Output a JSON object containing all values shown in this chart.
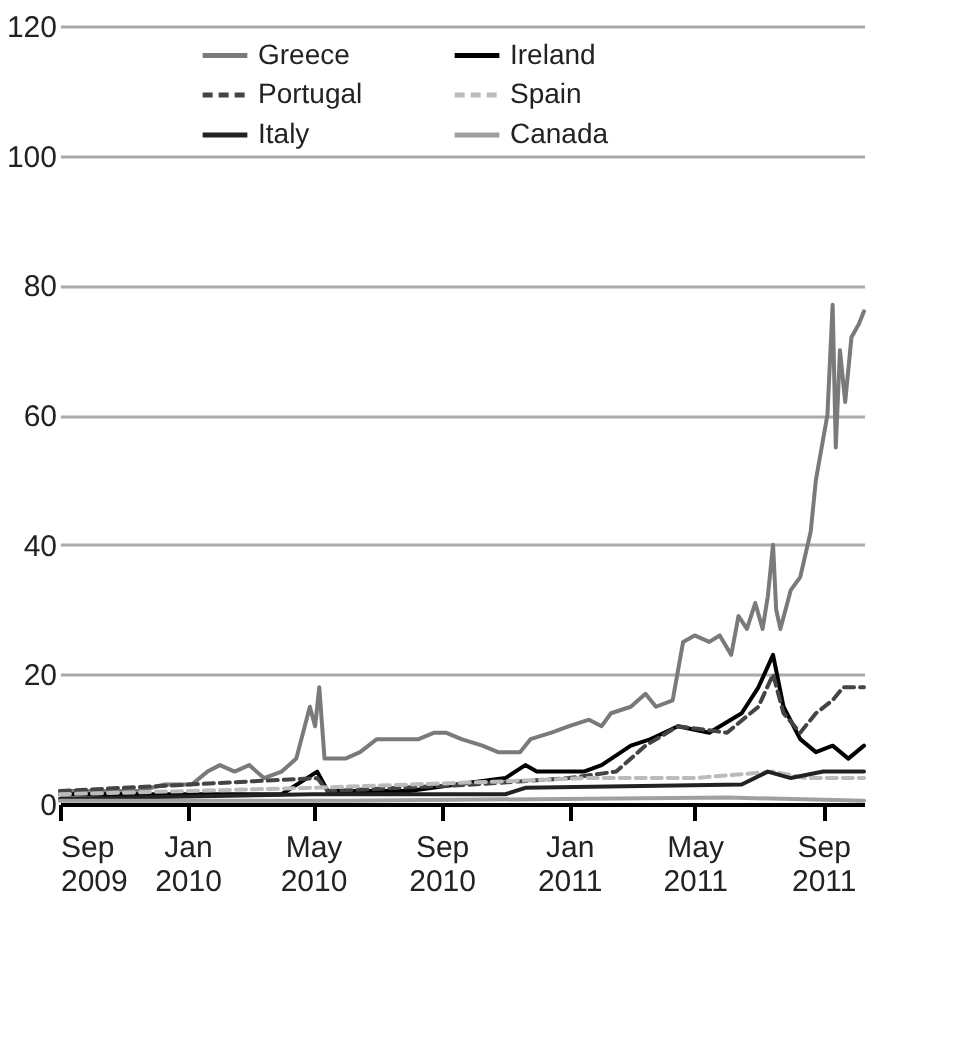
{
  "chart_data": {
    "type": "line",
    "xlim": [
      "2009-09-01",
      "2011-10-10"
    ],
    "xticks": [
      {
        "value": "2009-09-01",
        "label": "Sep\n2009"
      },
      {
        "value": "2010-01-01",
        "label": "Jan\n2010"
      },
      {
        "value": "2010-05-01",
        "label": "May\n2010"
      },
      {
        "value": "2010-09-01",
        "label": "Sep\n2010"
      },
      {
        "value": "2011-01-01",
        "label": "Jan\n2011"
      },
      {
        "value": "2011-05-01",
        "label": "May\n2011"
      },
      {
        "value": "2011-09-01",
        "label": "Sep\n2011"
      }
    ],
    "ylim": [
      0,
      120
    ],
    "yticks": [
      0,
      20,
      40,
      60,
      80,
      100,
      120
    ],
    "grid": "y",
    "legend": "top",
    "series": [
      {
        "name": "Greece",
        "color": "#7a7a7a",
        "line_style": "solid",
        "x": [
          "2009-09-01",
          "2009-11-15",
          "2009-12-10",
          "2010-01-05",
          "2010-01-20",
          "2010-02-01",
          "2010-02-15",
          "2010-03-01",
          "2010-03-15",
          "2010-04-01",
          "2010-04-15",
          "2010-04-28",
          "2010-05-03",
          "2010-05-07",
          "2010-05-12",
          "2010-06-01",
          "2010-06-15",
          "2010-07-01",
          "2010-07-20",
          "2010-08-10",
          "2010-08-25",
          "2010-09-05",
          "2010-09-20",
          "2010-10-10",
          "2010-10-25",
          "2010-11-15",
          "2010-11-25",
          "2010-12-15",
          "2011-01-01",
          "2011-01-20",
          "2011-02-01",
          "2011-02-10",
          "2011-03-01",
          "2011-03-15",
          "2011-03-25",
          "2011-04-10",
          "2011-04-20",
          "2011-05-01",
          "2011-05-15",
          "2011-05-25",
          "2011-06-05",
          "2011-06-12",
          "2011-06-20",
          "2011-06-28",
          "2011-07-05",
          "2011-07-10",
          "2011-07-15",
          "2011-07-18",
          "2011-07-22",
          "2011-08-01",
          "2011-08-10",
          "2011-08-20",
          "2011-08-25",
          "2011-09-05",
          "2011-09-10",
          "2011-09-13",
          "2011-09-17",
          "2011-09-22",
          "2011-09-28",
          "2011-10-05",
          "2011-10-10"
        ],
        "values": [
          2,
          2,
          3,
          3,
          5,
          6,
          5,
          6,
          4,
          5,
          7,
          15,
          12,
          18,
          7,
          7,
          8,
          10,
          10,
          10,
          11,
          11,
          10,
          9,
          8,
          8,
          10,
          11,
          12,
          13,
          12,
          14,
          15,
          17,
          15,
          16,
          25,
          26,
          25,
          26,
          23,
          29,
          27,
          31,
          27,
          32,
          40,
          30,
          27,
          33,
          35,
          42,
          50,
          60,
          77,
          55,
          70,
          62,
          72,
          74,
          76
        ]
      },
      {
        "name": "Ireland",
        "color": "#000000",
        "line_style": "solid",
        "x": [
          "2009-09-01",
          "2010-04-01",
          "2010-05-05",
          "2010-05-15",
          "2010-08-01",
          "2010-09-15",
          "2010-11-01",
          "2010-11-20",
          "2010-12-01",
          "2011-01-15",
          "2011-02-01",
          "2011-03-01",
          "2011-03-20",
          "2011-04-15",
          "2011-05-15",
          "2011-06-15",
          "2011-07-01",
          "2011-07-15",
          "2011-07-25",
          "2011-08-10",
          "2011-08-25",
          "2011-09-10",
          "2011-09-25",
          "2011-10-10"
        ],
        "values": [
          1.5,
          1.5,
          5,
          2,
          2,
          3,
          4,
          6,
          5,
          5,
          6,
          9,
          10,
          12,
          11,
          14,
          18,
          23,
          15,
          10,
          8,
          9,
          7,
          9
        ]
      },
      {
        "name": "Portugal",
        "color": "#444444",
        "line_style": "dashed",
        "x": [
          "2009-09-01",
          "2010-05-05",
          "2010-05-15",
          "2010-10-01",
          "2011-01-01",
          "2011-02-15",
          "2011-03-15",
          "2011-04-15",
          "2011-06-01",
          "2011-07-01",
          "2011-07-15",
          "2011-07-25",
          "2011-08-10",
          "2011-08-25",
          "2011-09-10",
          "2011-09-20",
          "2011-10-10"
        ],
        "values": [
          2,
          4,
          2,
          3,
          4,
          5,
          9,
          12,
          11,
          15,
          20,
          14,
          11,
          14,
          16,
          18,
          18
        ]
      },
      {
        "name": "Spain",
        "color": "#bbbbbb",
        "line_style": "dashed",
        "x": [
          "2009-09-01",
          "2010-05-01",
          "2010-08-01",
          "2010-11-01",
          "2011-01-15",
          "2011-05-01",
          "2011-07-15",
          "2011-08-15",
          "2011-10-10"
        ],
        "values": [
          1.5,
          2.5,
          3,
          3.5,
          4,
          4,
          5,
          4,
          4
        ]
      },
      {
        "name": "Italy",
        "color": "#222222",
        "line_style": "solid",
        "x": [
          "2009-09-01",
          "2010-05-01",
          "2010-11-01",
          "2010-11-20",
          "2011-06-15",
          "2011-07-10",
          "2011-08-01",
          "2011-09-01",
          "2011-10-10"
        ],
        "values": [
          0.8,
          1.5,
          1.5,
          2.5,
          3,
          5,
          4,
          5,
          5
        ]
      },
      {
        "name": "Canada",
        "color": "#a0a0a0",
        "line_style": "solid",
        "x": [
          "2009-09-01",
          "2010-06-01",
          "2011-06-01",
          "2011-10-10"
        ],
        "values": [
          0.5,
          0.5,
          1,
          0.5
        ]
      }
    ]
  }
}
